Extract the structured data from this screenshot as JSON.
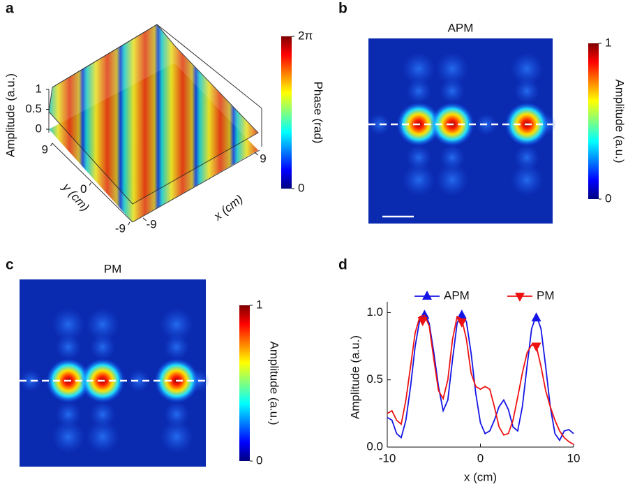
{
  "chart_data": [
    {
      "type": "surface3d",
      "panel_label": "a",
      "zlabel": "Amplitude (a.u.)",
      "ylabel": "y (cm)",
      "xlabel": "x (cm)",
      "zlim": [
        0,
        1
      ],
      "zticks": [
        0,
        0.5,
        1
      ],
      "ylim": [
        -9,
        9
      ],
      "yticks": [
        -9,
        0,
        9
      ],
      "xlim": [
        -9,
        9
      ],
      "xticks": [
        -9,
        9
      ],
      "colorbar": {
        "label": "Phase (rad)",
        "lim": [
          0,
          6.283
        ],
        "ticks": [
          0,
          {
            "value": 6.283,
            "label": "2π"
          }
        ],
        "colormap": "jet"
      }
    },
    {
      "type": "heatmap",
      "panel_label": "b",
      "title": "APM",
      "colorbar": {
        "label": "Amplitude (a.u.)",
        "lim": [
          0,
          1
        ],
        "ticks": [
          0,
          1
        ],
        "colormap": "jet"
      }
    },
    {
      "type": "heatmap",
      "panel_label": "c",
      "title": "PM",
      "colorbar": {
        "label": "Amplitude (a.u.)",
        "lim": [
          0,
          1
        ],
        "ticks": [
          0,
          1
        ],
        "colormap": "jet"
      }
    },
    {
      "type": "line",
      "panel_label": "d",
      "xlabel": "x (cm)",
      "ylabel": "Amplitude (a.u.)",
      "x": [
        -10,
        -9.5,
        -9,
        -8.5,
        -8,
        -7.5,
        -7,
        -6.5,
        -6,
        -5.5,
        -5,
        -4.5,
        -4,
        -3.5,
        -3,
        -2.5,
        -2,
        -1.5,
        -1,
        -0.5,
        0,
        0.5,
        1,
        1.5,
        2,
        2.5,
        3,
        3.5,
        4,
        4.5,
        5,
        5.5,
        6,
        6.5,
        7,
        7.5,
        8,
        8.5,
        9,
        9.5,
        10
      ],
      "xlim": [
        -10,
        10
      ],
      "xticks": [
        -10,
        0,
        10
      ],
      "ylim": [
        0,
        1.08
      ],
      "yticks": [
        {
          "value": 0,
          "label": "0.0"
        },
        {
          "value": 0.5,
          "label": "0.5"
        },
        {
          "value": 1,
          "label": "1.0"
        }
      ],
      "legend": "upper center",
      "series": [
        {
          "name": "APM",
          "color": "#1414e6",
          "marker": "^",
          "values": [
            0.22,
            0.2,
            0.1,
            0.07,
            0.2,
            0.45,
            0.75,
            0.95,
            1.0,
            0.92,
            0.7,
            0.45,
            0.27,
            0.35,
            0.65,
            0.92,
            1.0,
            0.93,
            0.7,
            0.4,
            0.18,
            0.1,
            0.12,
            0.2,
            0.3,
            0.35,
            0.28,
            0.15,
            0.12,
            0.3,
            0.6,
            0.88,
            0.98,
            0.88,
            0.6,
            0.3,
            0.1,
            0.05,
            0.12,
            0.13,
            0.1
          ],
          "peak_x": [
            -6,
            -2,
            6
          ],
          "peak_values": [
            0.98,
            0.98,
            0.96
          ]
        },
        {
          "name": "PM",
          "color": "#ee1111",
          "marker": "v",
          "values": [
            0.25,
            0.27,
            0.2,
            0.17,
            0.35,
            0.6,
            0.85,
            0.97,
            0.98,
            0.9,
            0.65,
            0.42,
            0.36,
            0.5,
            0.8,
            0.97,
            0.95,
            0.8,
            0.55,
            0.45,
            0.43,
            0.45,
            0.43,
            0.3,
            0.15,
            0.09,
            0.1,
            0.2,
            0.37,
            0.55,
            0.7,
            0.76,
            0.75,
            0.6,
            0.42,
            0.3,
            0.2,
            0.12,
            0.07,
            0.04,
            0.02
          ],
          "peak_x": [
            -6.2,
            -2,
            6
          ],
          "peak_values": [
            0.94,
            0.93,
            0.75
          ]
        }
      ]
    }
  ]
}
